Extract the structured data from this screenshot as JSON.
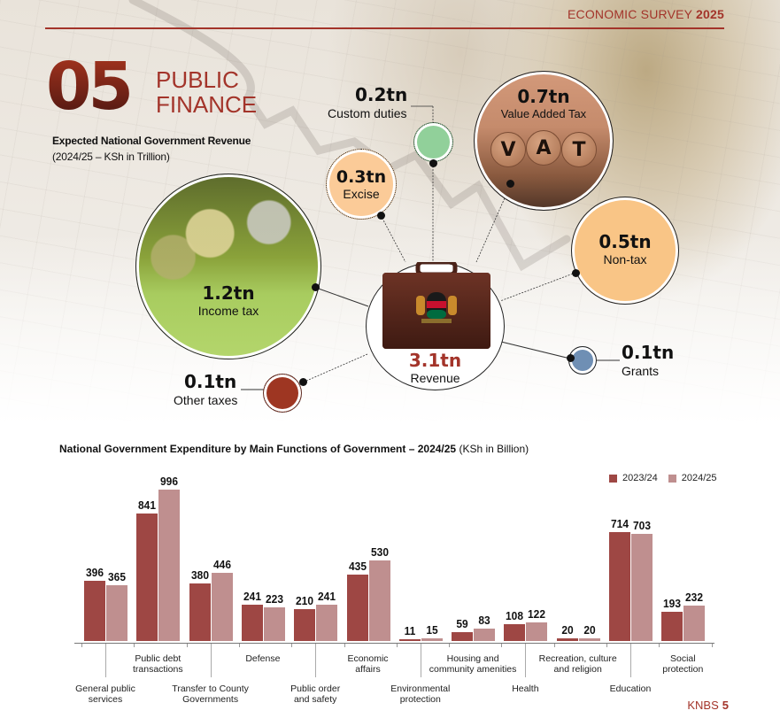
{
  "header": {
    "publication": "ECONOMIC SURVEY",
    "year": "2025",
    "accent_color": "#a3342a"
  },
  "chapter": {
    "number": "05",
    "title_line1": "PUBLIC",
    "title_line2": "FINANCE"
  },
  "revenue_section": {
    "title": "Expected National Government Revenue",
    "subtitle": "(2024/25 – KSh in Trillion)",
    "total": {
      "value": "3.1tn",
      "label": "Revenue",
      "value_color": "#a3342a"
    },
    "items": [
      {
        "key": "income_tax",
        "value": "1.2tn",
        "label": "Income tax",
        "color": "#a8cc5f"
      },
      {
        "key": "vat",
        "value": "0.7tn",
        "label": "Value Added Tax",
        "color": "#c58b6c"
      },
      {
        "key": "non_tax",
        "value": "0.5tn",
        "label": "Non-tax",
        "color": "#f9c586"
      },
      {
        "key": "excise",
        "value": "0.3tn",
        "label": "Excise",
        "color": "#fbcb98"
      },
      {
        "key": "custom_duties",
        "value": "0.2tn",
        "label": "Custom duties",
        "color": "#91d09a"
      },
      {
        "key": "grants",
        "value": "0.1tn",
        "label": "Grants",
        "color": "#6f8fb4"
      },
      {
        "key": "other_taxes",
        "value": "0.1tn",
        "label": "Other taxes",
        "color": "#9e3622"
      }
    ],
    "vat_coin_letters": [
      "V",
      "A",
      "T"
    ]
  },
  "expenditure_section": {
    "title_bold": "National Government Expenditure by Main Functions of Government – 2024/25",
    "title_unit": " (KSh in Billion)"
  },
  "chart_data": [
    {
      "type": "bubble",
      "title": "Expected National Government Revenue",
      "subtitle": "(2024/25 – KSh in Trillion)",
      "unit": "KSh trillion",
      "total": {
        "label": "Revenue",
        "value": 3.1
      },
      "categories": [
        "Income tax",
        "Value Added Tax",
        "Non-tax",
        "Excise",
        "Custom duties",
        "Grants",
        "Other taxes"
      ],
      "values": [
        1.2,
        0.7,
        0.5,
        0.3,
        0.2,
        0.1,
        0.1
      ]
    },
    {
      "type": "bar",
      "title": "National Government Expenditure by Main Functions of Government – 2024/25 (KSh in Billion)",
      "xlabel": "",
      "ylabel": "KSh in Billion",
      "ylim": [
        0,
        1000
      ],
      "grid": false,
      "legend_position": "top-right",
      "categories": [
        "General public services",
        "Public debt transactions",
        "Transfer to County Governments",
        "Defense",
        "Public order and safety",
        "Economic affairs",
        "Environmental protection",
        "Housing and community amenities",
        "Health",
        "Recreation, culture and religion",
        "Education",
        "Social protection"
      ],
      "series": [
        {
          "name": "2023/24",
          "color": "#9e4744",
          "values": [
            396,
            841,
            380,
            241,
            210,
            435,
            11,
            59,
            108,
            20,
            714,
            193
          ]
        },
        {
          "name": "2024/25",
          "color": "#bf8f8f",
          "values": [
            365,
            996,
            446,
            223,
            241,
            530,
            15,
            83,
            122,
            20,
            703,
            232
          ]
        }
      ]
    }
  ],
  "category_labels": [
    {
      "l1": "General public",
      "l2": "services",
      "row": "low"
    },
    {
      "l1": "Public debt",
      "l2": "transactions",
      "row": "high"
    },
    {
      "l1": "Transfer to County",
      "l2": "Governments",
      "row": "low"
    },
    {
      "l1": "Defense",
      "l2": "",
      "row": "high"
    },
    {
      "l1": "Public order",
      "l2": "and safety",
      "row": "low"
    },
    {
      "l1": "Economic",
      "l2": "affairs",
      "row": "high"
    },
    {
      "l1": "Environmental",
      "l2": "protection",
      "row": "low"
    },
    {
      "l1": "Housing and",
      "l2": "community amenities",
      "row": "high"
    },
    {
      "l1": "Health",
      "l2": "",
      "row": "low"
    },
    {
      "l1": "Recreation, culture",
      "l2": "and religion",
      "row": "high"
    },
    {
      "l1": "Education",
      "l2": "",
      "row": "low"
    },
    {
      "l1": "Social",
      "l2": "protection",
      "row": "high"
    }
  ],
  "footer": {
    "org": "KNBS",
    "page": "5"
  }
}
